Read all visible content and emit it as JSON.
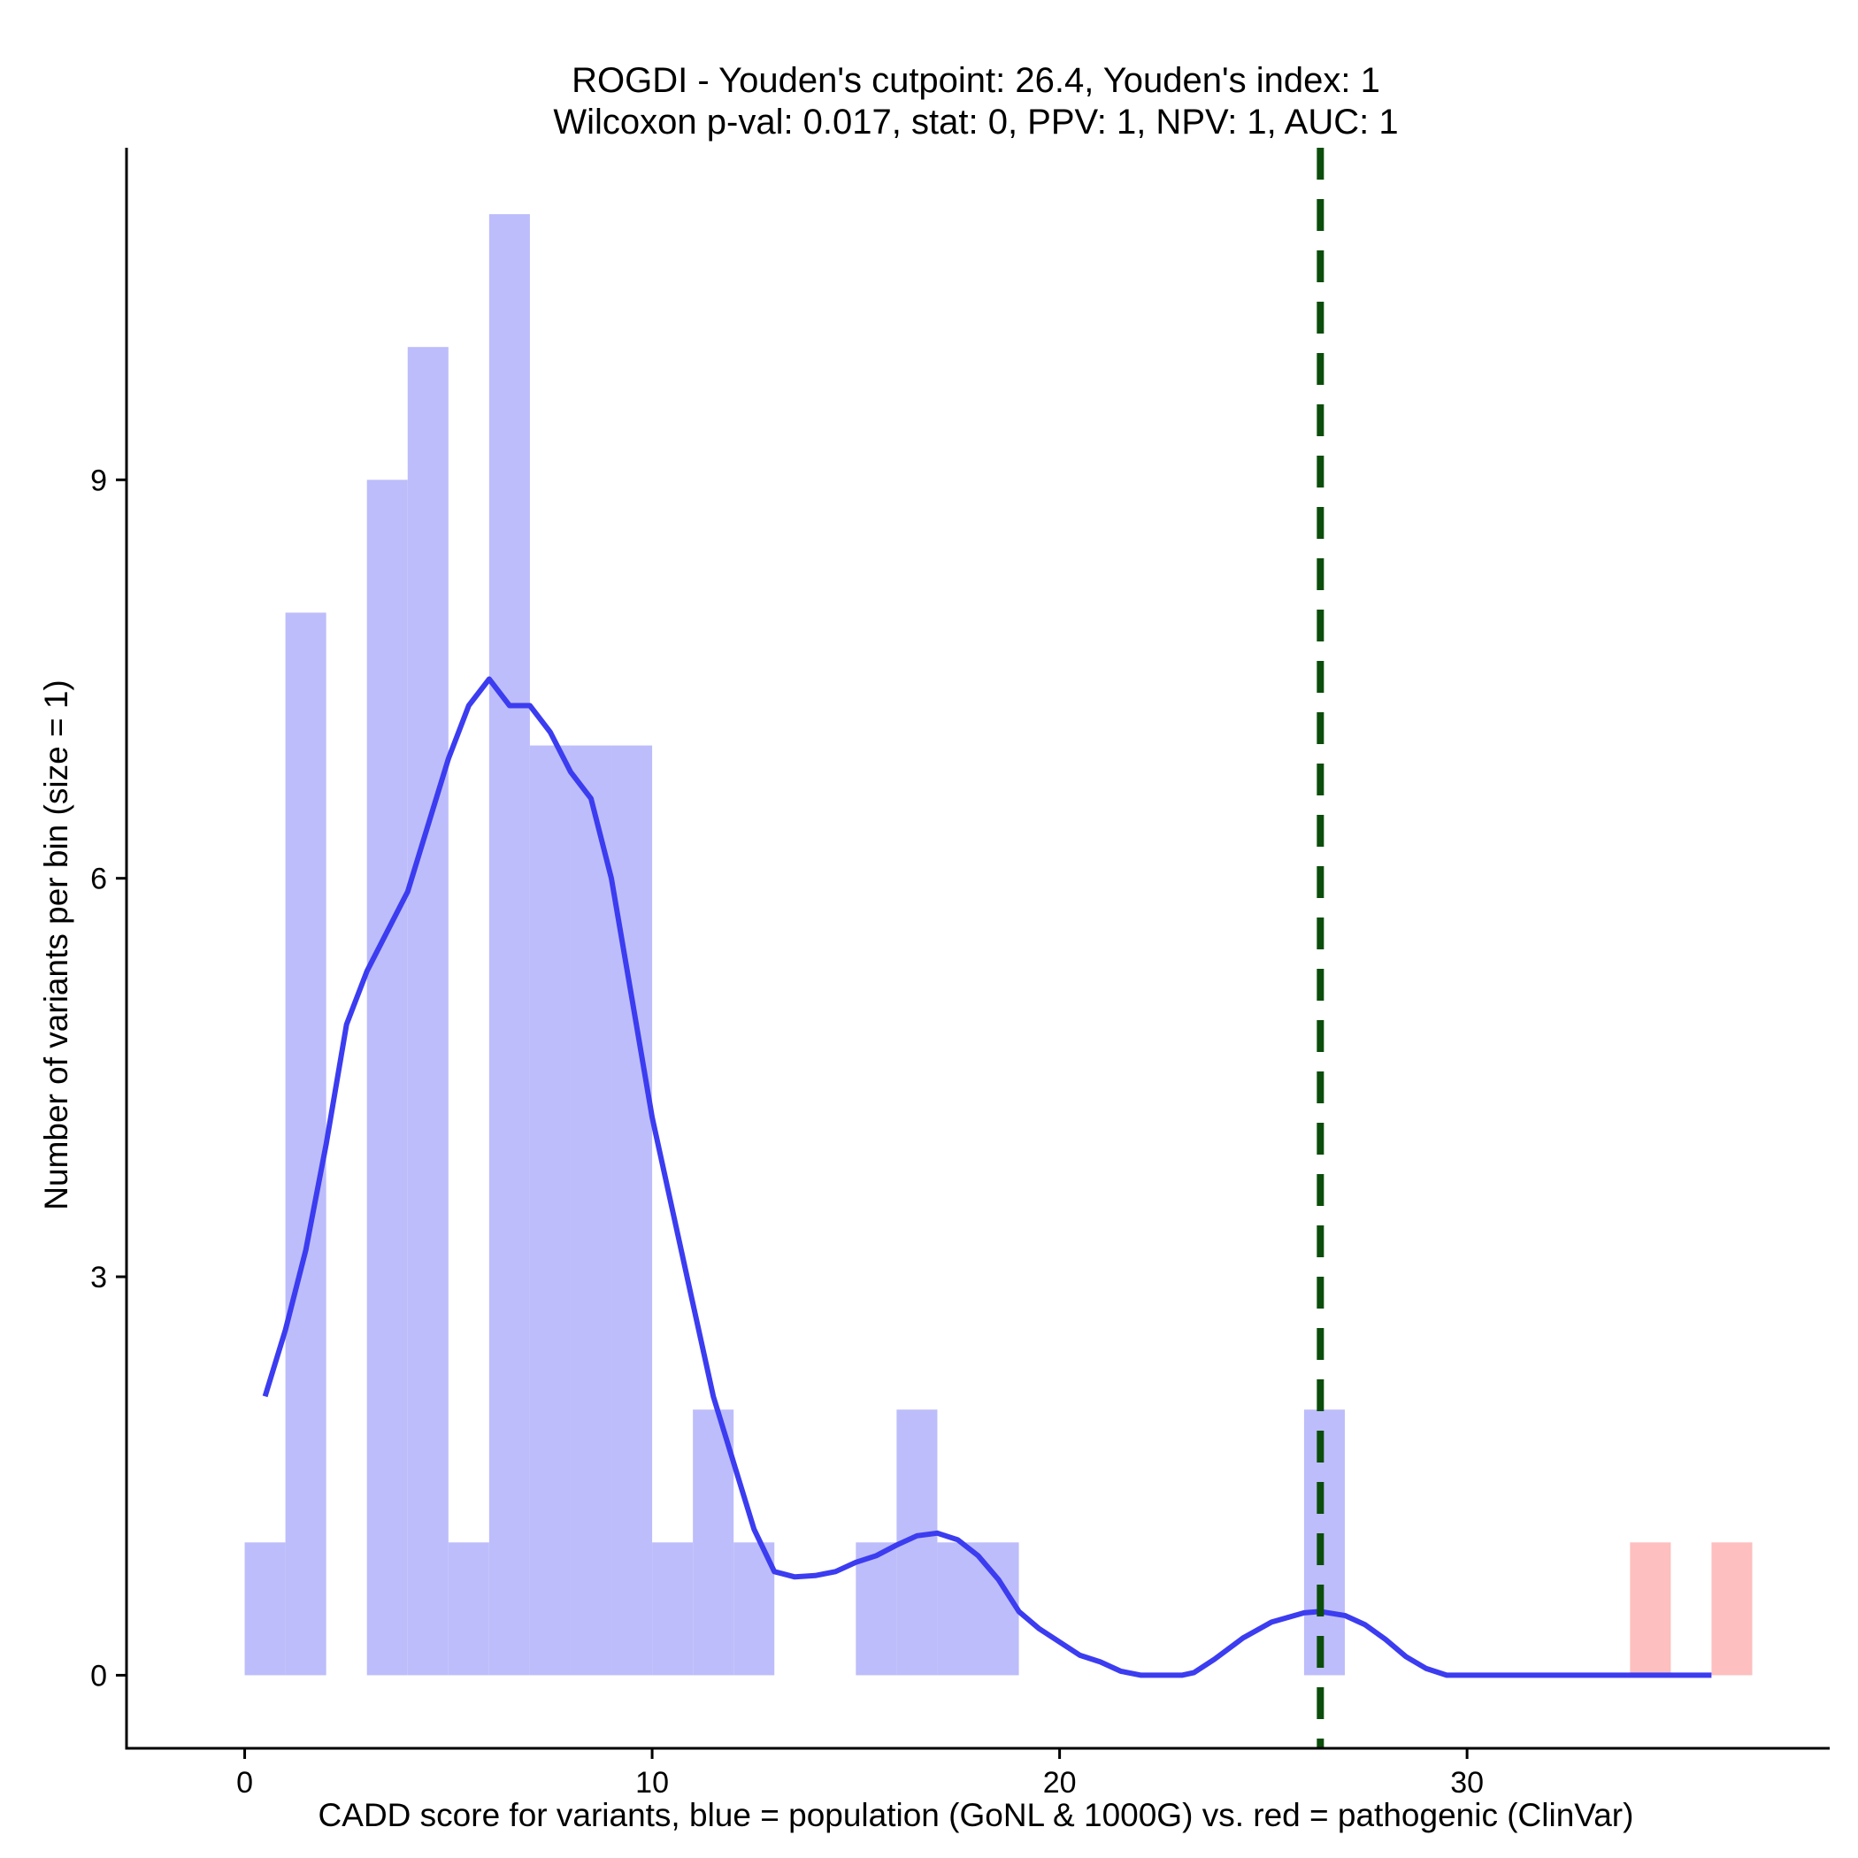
{
  "chart_data": {
    "type": "bar",
    "title": "ROGDI - Youden's cutpoint: 26.4, Youden's index: 1",
    "subtitle": "Wilcoxon p-val: 0.017, stat: 0, PPV: 1, NPV: 1, AUC: 1",
    "xlabel": "CADD score for variants, blue = population (GoNL & 1000G) vs. red = pathogenic (ClinVar)",
    "ylabel": "Number of variants per bin (size = 1)",
    "xlim": [
      -2.9,
      38.9
    ],
    "ylim": [
      -0.55,
      11.5
    ],
    "x_ticks": [
      0,
      10,
      20,
      30
    ],
    "y_ticks": [
      0,
      3,
      6,
      9
    ],
    "grid": false,
    "legend": "none",
    "bin_width": 1,
    "series": [
      {
        "name": "population",
        "color": "#bdbdfb",
        "bins": [
          {
            "start": 0,
            "count": 1
          },
          {
            "start": 1,
            "count": 8
          },
          {
            "start": 3,
            "count": 9
          },
          {
            "start": 4,
            "count": 10
          },
          {
            "start": 5,
            "count": 1
          },
          {
            "start": 6,
            "count": 11
          },
          {
            "start": 7,
            "count": 7
          },
          {
            "start": 8,
            "count": 7
          },
          {
            "start": 9,
            "count": 7
          },
          {
            "start": 10,
            "count": 1
          },
          {
            "start": 11,
            "count": 2
          },
          {
            "start": 12,
            "count": 1
          },
          {
            "start": 15,
            "count": 1
          },
          {
            "start": 16,
            "count": 2
          },
          {
            "start": 17,
            "count": 1
          },
          {
            "start": 18,
            "count": 1
          },
          {
            "start": 26,
            "count": 2
          }
        ]
      },
      {
        "name": "pathogenic",
        "color": "#fdbfbf",
        "bins": [
          {
            "start": 34,
            "count": 1
          },
          {
            "start": 36,
            "count": 1
          }
        ]
      }
    ],
    "density": {
      "color": "#3c3cf0",
      "points": [
        [
          0.5,
          2.1
        ],
        [
          1.0,
          2.6
        ],
        [
          1.5,
          3.2
        ],
        [
          2.0,
          4.0
        ],
        [
          2.5,
          4.9
        ],
        [
          3.0,
          5.3
        ],
        [
          3.5,
          5.6
        ],
        [
          4.0,
          5.9
        ],
        [
          4.5,
          6.4
        ],
        [
          5.0,
          6.9
        ],
        [
          5.5,
          7.3
        ],
        [
          6.0,
          7.5
        ],
        [
          6.5,
          7.3
        ],
        [
          7.0,
          7.3
        ],
        [
          7.5,
          7.1
        ],
        [
          8.0,
          6.8
        ],
        [
          8.5,
          6.6
        ],
        [
          9.0,
          6.0
        ],
        [
          9.5,
          5.1
        ],
        [
          10.0,
          4.2
        ],
        [
          10.5,
          3.5
        ],
        [
          11.0,
          2.8
        ],
        [
          11.5,
          2.1
        ],
        [
          12.0,
          1.6
        ],
        [
          12.5,
          1.1
        ],
        [
          13.0,
          0.78
        ],
        [
          13.5,
          0.74
        ],
        [
          14.0,
          0.75
        ],
        [
          14.5,
          0.78
        ],
        [
          15.0,
          0.85
        ],
        [
          15.5,
          0.9
        ],
        [
          16.0,
          0.98
        ],
        [
          16.5,
          1.05
        ],
        [
          17.0,
          1.07
        ],
        [
          17.5,
          1.02
        ],
        [
          18.0,
          0.9
        ],
        [
          18.5,
          0.72
        ],
        [
          19.0,
          0.48
        ],
        [
          19.5,
          0.35
        ],
        [
          20.0,
          0.25
        ],
        [
          20.5,
          0.15
        ],
        [
          21.0,
          0.1
        ],
        [
          21.5,
          0.03
        ],
        [
          22.0,
          0.0
        ],
        [
          23.0,
          0.0
        ],
        [
          23.3,
          0.02
        ],
        [
          23.8,
          0.12
        ],
        [
          24.5,
          0.28
        ],
        [
          25.2,
          0.4
        ],
        [
          26.0,
          0.47
        ],
        [
          26.4,
          0.48
        ],
        [
          27.0,
          0.45
        ],
        [
          27.5,
          0.38
        ],
        [
          28.0,
          0.27
        ],
        [
          28.5,
          0.14
        ],
        [
          29.0,
          0.05
        ],
        [
          29.5,
          0.0
        ],
        [
          36.0,
          0.0
        ]
      ]
    },
    "cutpoint": {
      "x": 26.4,
      "color": "#0b4d0b",
      "style": "dashed"
    }
  }
}
